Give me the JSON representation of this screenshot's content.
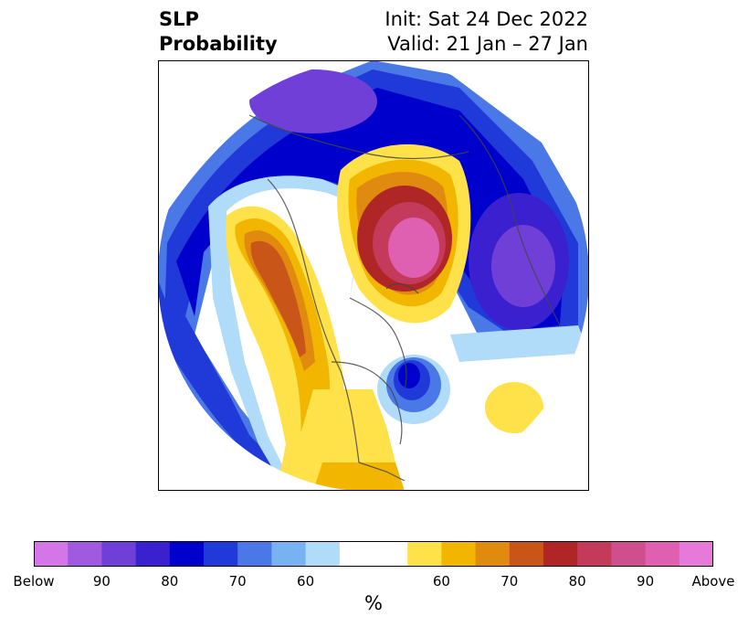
{
  "header": {
    "title_line1": "SLP",
    "title_line2": "Probability",
    "init": "Init: Sat 24 Dec 2022",
    "valid": "Valid: 21 Jan – 27 Jan"
  },
  "map": {
    "projection": "north-polar-stereographic",
    "fields": [
      {
        "region": "Arctic Ocean / Siberian coast",
        "category": "above",
        "max_probability": "90+"
      },
      {
        "region": "Alaska / Western Canada",
        "category": "above",
        "max_probability": "70-80"
      },
      {
        "region": "Central United States",
        "category": "above",
        "max_probability": "60"
      },
      {
        "region": "Central North Atlantic",
        "category": "above",
        "max_probability": "60"
      },
      {
        "region": "Europe",
        "category": "below",
        "max_probability": "90"
      },
      {
        "region": "Eastern Siberia / North Pacific",
        "category": "below",
        "max_probability": "80-90"
      },
      {
        "region": "Gulf of Alaska / Northeast Pacific",
        "category": "below",
        "max_probability": "70-80"
      },
      {
        "region": "Labrador Sea / Eastern Canada",
        "category": "below",
        "max_probability": "80"
      }
    ]
  },
  "colorbar": {
    "colors": [
      "#d576e8",
      "#a05ae0",
      "#6f3fd8",
      "#3b20d0",
      "#0000cd",
      "#1f3ad8",
      "#4a78e6",
      "#78b2f2",
      "#b0dcfa",
      "#ffffff",
      "#ffffff",
      "#ffe14a",
      "#f2b600",
      "#e08a10",
      "#c95618",
      "#b02525",
      "#c43a5a",
      "#cf4f8c",
      "#df5fb0",
      "#e77ad8"
    ],
    "ticks": [
      "Below",
      "90",
      "80",
      "70",
      "60",
      "60",
      "70",
      "80",
      "90",
      "Above"
    ],
    "unit": "%"
  }
}
